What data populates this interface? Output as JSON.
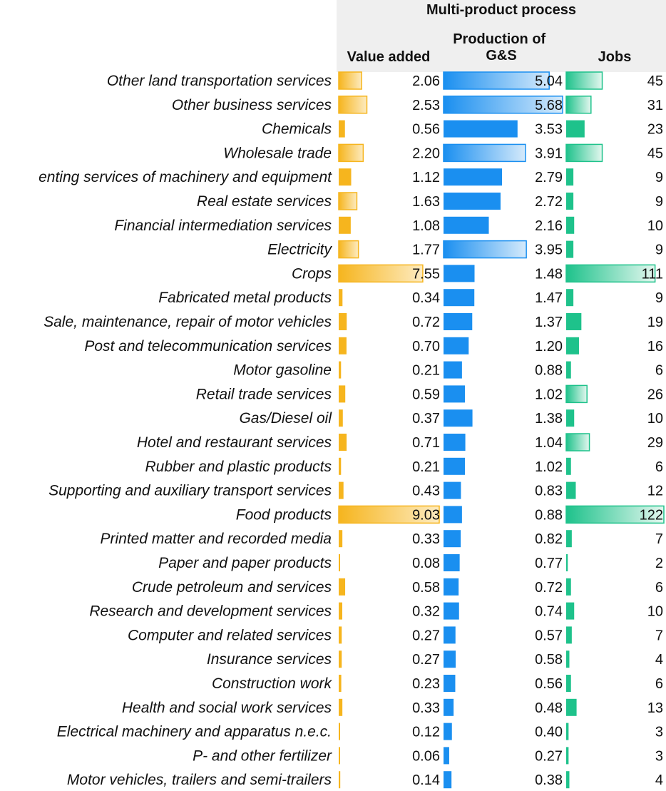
{
  "chart_data": {
    "type": "bar",
    "title": "Multi-product process",
    "columns": [
      {
        "key": "value_added",
        "label": "Value added",
        "color": "#f6b51e"
      },
      {
        "key": "production",
        "label": "Production of G&S",
        "label_lines": [
          "Production of",
          "G&S"
        ],
        "color": "#1a8ff0"
      },
      {
        "key": "jobs",
        "label": "Jobs",
        "color": "#1ec28b"
      }
    ],
    "categories": [
      "Other land transportation services",
      "Other business services",
      "Chemicals",
      "Wholesale trade",
      "enting services of machinery and equipment",
      "Real estate services",
      "Financial intermediation services",
      "Electricity",
      "Crops",
      "Fabricated metal products",
      "Sale, maintenance, repair of motor vehicles",
      "Post and telecommunication services",
      "Motor gasoline",
      "Retail  trade services",
      "Gas/Diesel oil",
      "Hotel and restaurant services",
      "Rubber and plastic products",
      "Supporting and auxiliary transport services",
      "Food products",
      "Printed matter and recorded media",
      "Paper and paper products",
      "Crude petroleum and services",
      "Research and development services",
      "Computer and related services",
      "Insurance services",
      "Construction work",
      "Health and social work services",
      "Electrical machinery and apparatus n.e.c.",
      "P- and other fertilizer",
      "Motor vehicles, trailers and semi-trailers"
    ],
    "series": [
      {
        "name": "Value added",
        "values": [
          2.06,
          2.53,
          0.56,
          2.2,
          1.12,
          1.63,
          1.08,
          1.77,
          7.55,
          0.34,
          0.72,
          0.7,
          0.21,
          0.59,
          0.37,
          0.71,
          0.21,
          0.43,
          9.03,
          0.33,
          0.08,
          0.58,
          0.32,
          0.27,
          0.27,
          0.23,
          0.33,
          0.12,
          0.06,
          0.14
        ]
      },
      {
        "name": "Production of G&S",
        "values": [
          5.04,
          5.68,
          3.53,
          3.91,
          2.79,
          2.72,
          2.16,
          3.95,
          1.48,
          1.47,
          1.37,
          1.2,
          0.88,
          1.02,
          1.38,
          1.04,
          1.02,
          0.83,
          0.88,
          0.82,
          0.77,
          0.72,
          0.74,
          0.57,
          0.58,
          0.56,
          0.48,
          0.4,
          0.27,
          0.38
        ]
      },
      {
        "name": "Jobs",
        "values": [
          45,
          31,
          23,
          45,
          9,
          9,
          10,
          9,
          111,
          9,
          19,
          16,
          6,
          26,
          10,
          29,
          6,
          12,
          122,
          7,
          2,
          6,
          10,
          7,
          4,
          6,
          13,
          3,
          3,
          4
        ]
      }
    ],
    "value_labels": [
      [
        "2.06",
        "2.53",
        "0.56",
        "2.20",
        "1.12",
        "1.63",
        "1.08",
        "1.77",
        "7.55",
        "0.34",
        "0.72",
        "0.70",
        "0.21",
        "0.59",
        "0.37",
        "0.71",
        "0.21",
        "0.43",
        "9.03",
        "0.33",
        "0.08",
        "0.58",
        "0.32",
        "0.27",
        "0.27",
        "0.23",
        "0.33",
        "0.12",
        "0.06",
        "0.14"
      ],
      [
        "5.04",
        "5.68",
        "3.53",
        "3.91",
        "2.79",
        "2.72",
        "2.16",
        "3.95",
        "1.48",
        "1.47",
        "1.37",
        "1.20",
        "0.88",
        "1.02",
        "1.38",
        "1.04",
        "1.02",
        "0.83",
        "0.88",
        "0.82",
        "0.77",
        "0.72",
        "0.74",
        "0.57",
        "0.58",
        "0.56",
        "0.48",
        "0.40",
        "0.27",
        "0.38"
      ],
      [
        "45",
        "31",
        "23",
        "45",
        "9",
        "9",
        "10",
        "9",
        "111",
        "9",
        "19",
        "16",
        "6",
        "26",
        "10",
        "29",
        "6",
        "12",
        "122",
        "7",
        "2",
        "6",
        "10",
        "7",
        "4",
        "6",
        "13",
        "3",
        "3",
        "4"
      ]
    ],
    "scale_max": [
      9.03,
      5.68,
      122
    ],
    "legend": "none",
    "grid": false
  }
}
